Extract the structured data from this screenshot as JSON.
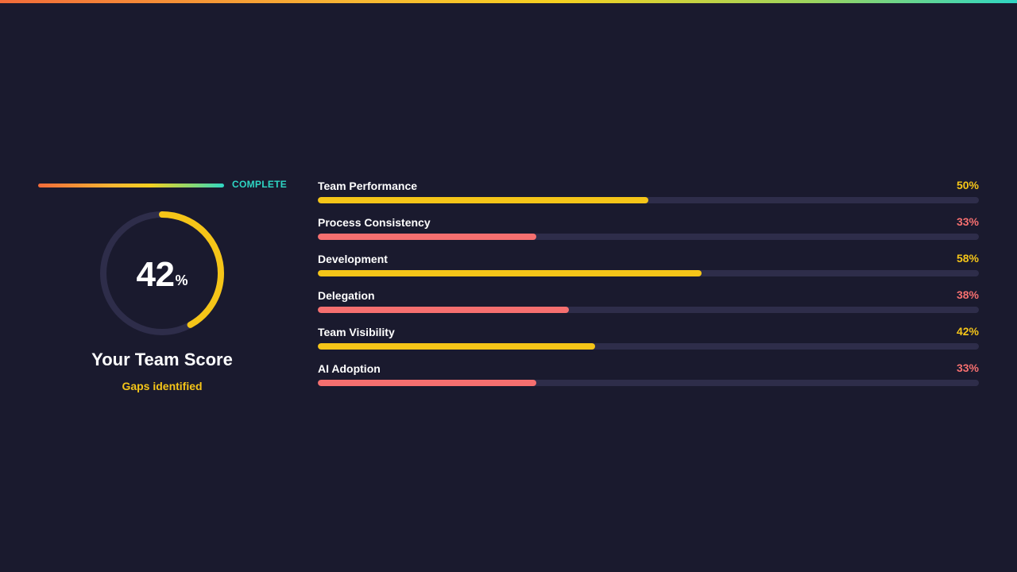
{
  "progress": {
    "label": "COMPLETE"
  },
  "score": {
    "value": 42,
    "value_text": "42",
    "unit": "%",
    "title": "Your Team Score",
    "subtitle": "Gaps identified",
    "ring_color": "#f5c518",
    "track_color": "#2e2d4a"
  },
  "colors": {
    "background": "#1a1a2e",
    "good": "#f5c518",
    "gap": "#f56f6f",
    "track": "#2e2d4a",
    "complete": "#2ed6c4"
  },
  "metrics": [
    {
      "label": "Team Performance",
      "value": 50,
      "value_text": "50%",
      "color": "#f5c518"
    },
    {
      "label": "Process Consistency",
      "value": 33,
      "value_text": "33%",
      "color": "#f56f6f"
    },
    {
      "label": "Development",
      "value": 58,
      "value_text": "58%",
      "color": "#f5c518"
    },
    {
      "label": "Delegation",
      "value": 38,
      "value_text": "38%",
      "color": "#f56f6f"
    },
    {
      "label": "Team Visibility",
      "value": 42,
      "value_text": "42%",
      "color": "#f5c518"
    },
    {
      "label": "AI Adoption",
      "value": 33,
      "value_text": "33%",
      "color": "#f56f6f"
    }
  ]
}
